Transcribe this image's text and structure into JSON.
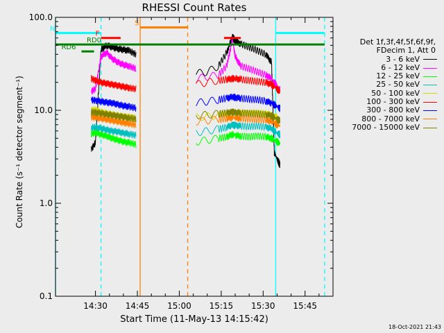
{
  "chart_data": {
    "type": "line",
    "title": "RHESSI Count Rates",
    "xlabel": "Start Time (11-May-13 14:15:42)",
    "ylabel": "Count Rate (s⁻¹ detector segment⁻¹)",
    "yscale": "log",
    "ylim": [
      0.1,
      100
    ],
    "xlim": [
      "14:15:42",
      "15:55:00"
    ],
    "yticks": [
      "0.1",
      "1.0",
      "10.0",
      "100.0"
    ],
    "xticks": [
      "14:30",
      "14:45",
      "15:00",
      "15:15",
      "15:30",
      "15:45"
    ],
    "data_gaps": [
      [
        "14:46:00",
        "15:06:00"
      ]
    ],
    "series": [
      {
        "name": "3 - 6 keV",
        "color": "#000000",
        "x": [
          "14:28:30",
          "14:30",
          "14:32",
          "14:34",
          "14:36",
          "14:38",
          "14:40",
          "14:42",
          "14:44:30",
          "15:06",
          "15:10",
          "15:14",
          "15:17",
          "15:19",
          "15:20",
          "15:22",
          "15:25",
          "15:28",
          "15:31",
          "15:33",
          "15:34",
          "15:35",
          "15:36"
        ],
        "y": [
          3.8,
          4.5,
          45,
          50,
          48,
          46,
          45,
          44,
          40,
          25,
          26,
          30,
          42,
          62,
          56,
          52,
          48,
          44,
          40,
          33,
          3.5,
          3.0,
          2.6
        ]
      },
      {
        "name": "6 - 12 keV",
        "color": "#ff00ff",
        "x": [
          "14:28:30",
          "14:30",
          "14:32",
          "14:34",
          "14:36",
          "14:38",
          "14:40",
          "14:42",
          "14:44:30",
          "15:06",
          "15:10",
          "15:14",
          "15:17",
          "15:19",
          "15:20",
          "15:22",
          "15:25",
          "15:28",
          "15:31",
          "15:33",
          "15:34",
          "15:35",
          "15:36"
        ],
        "y": [
          16,
          17,
          38,
          42,
          36,
          33,
          31,
          30,
          28,
          22,
          23,
          24,
          30,
          58,
          38,
          30,
          28,
          26,
          24,
          22,
          20,
          18,
          17
        ]
      },
      {
        "name": "12 - 25 keV",
        "color": "#00ff00",
        "x": [
          "14:28:30",
          "14:30",
          "14:32",
          "14:34",
          "14:36",
          "14:38",
          "14:40",
          "14:42",
          "14:44:30",
          "15:06",
          "15:10",
          "15:14",
          "15:17",
          "15:19",
          "15:20",
          "15:22",
          "15:25",
          "15:28",
          "15:31",
          "15:33",
          "15:34",
          "15:35",
          "15:36"
        ],
        "y": [
          5.6,
          5.8,
          5.5,
          5.3,
          5.0,
          4.8,
          4.6,
          4.5,
          4.3,
          4.6,
          4.8,
          5.0,
          5.2,
          5.5,
          5.4,
          5.3,
          5.2,
          5.3,
          5.2,
          5.0,
          4.8,
          4.6,
          4.4
        ]
      },
      {
        "name": "25 - 50 keV",
        "color": "#00bfbf",
        "x": [
          "14:28:30",
          "14:30",
          "14:32",
          "14:34",
          "14:36",
          "14:38",
          "14:40",
          "14:42",
          "14:44:30",
          "15:06",
          "15:10",
          "15:14",
          "15:17",
          "15:19",
          "15:20",
          "15:22",
          "15:25",
          "15:28",
          "15:31",
          "15:33",
          "15:34",
          "15:35",
          "15:36"
        ],
        "y": [
          6.5,
          6.6,
          6.4,
          6.2,
          6.0,
          5.9,
          5.7,
          5.6,
          5.4,
          5.8,
          6.0,
          6.3,
          6.6,
          7.0,
          6.9,
          6.8,
          6.7,
          6.8,
          6.6,
          6.4,
          6.0,
          5.7,
          5.5
        ]
      },
      {
        "name": "50 - 100 keV",
        "color": "#d8d800",
        "x": [
          "14:28:30",
          "14:30",
          "14:32",
          "14:34",
          "14:36",
          "14:38",
          "14:40",
          "14:42",
          "14:44:30",
          "15:06",
          "15:10",
          "15:14",
          "15:17",
          "15:19",
          "15:20",
          "15:22",
          "15:25",
          "15:28",
          "15:31",
          "15:33",
          "15:34",
          "15:35",
          "15:36"
        ],
        "y": [
          10,
          10.2,
          9.6,
          9.3,
          9.0,
          8.8,
          8.6,
          8.5,
          8.2,
          8.4,
          8.6,
          8.9,
          9.2,
          9.6,
          9.5,
          9.4,
          9.3,
          9.4,
          9.2,
          9.0,
          8.6,
          8.3,
          8.0
        ]
      },
      {
        "name": "100 - 300 keV",
        "color": "#ff0000",
        "x": [
          "14:28:30",
          "14:30",
          "14:32",
          "14:34",
          "14:36",
          "14:38",
          "14:40",
          "14:42",
          "14:44:30",
          "15:06",
          "15:10",
          "15:14",
          "15:17",
          "15:19",
          "15:20",
          "15:22",
          "15:25",
          "15:28",
          "15:31",
          "15:33",
          "15:34",
          "15:35",
          "15:36"
        ],
        "y": [
          22,
          21,
          20,
          19.5,
          19,
          18.5,
          18,
          17.5,
          17,
          19,
          20,
          21,
          21.5,
          22,
          22,
          21.5,
          21,
          20.5,
          20,
          19,
          18,
          17,
          16
        ]
      },
      {
        "name": "300 - 800 keV",
        "color": "#0000ff",
        "x": [
          "14:28:30",
          "14:30",
          "14:32",
          "14:34",
          "14:36",
          "14:38",
          "14:40",
          "14:42",
          "14:44:30",
          "15:06",
          "15:10",
          "15:14",
          "15:17",
          "15:19",
          "15:20",
          "15:22",
          "15:25",
          "15:28",
          "15:31",
          "15:33",
          "15:34",
          "15:35",
          "15:36"
        ],
        "y": [
          13,
          12.8,
          12.5,
          12.2,
          12,
          11.6,
          11.2,
          11,
          10.6,
          12,
          12.5,
          13,
          13.5,
          14,
          13.8,
          13.5,
          13.2,
          13,
          12.6,
          12,
          11.5,
          11,
          10.5
        ]
      },
      {
        "name": "800 - 7000 keV",
        "color": "#ff8000",
        "x": [
          "14:28:30",
          "14:30",
          "14:32",
          "14:34",
          "14:36",
          "14:38",
          "14:40",
          "14:42",
          "14:44:30",
          "15:06",
          "15:10",
          "15:14",
          "15:17",
          "15:19",
          "15:20",
          "15:22",
          "15:25",
          "15:28",
          "15:31",
          "15:33",
          "15:34",
          "15:35",
          "15:36"
        ],
        "y": [
          8.5,
          8.4,
          8.2,
          8.0,
          7.8,
          7.6,
          7.4,
          7.2,
          7.0,
          7.6,
          7.8,
          8.0,
          8.2,
          8.4,
          8.3,
          8.2,
          8.1,
          8.0,
          7.9,
          7.6,
          7.3,
          7.0,
          6.8
        ]
      },
      {
        "name": "7000 - 15000 keV",
        "color": "#808000",
        "x": [
          "14:28:30",
          "14:30",
          "14:32",
          "14:34",
          "14:36",
          "14:38",
          "14:40",
          "14:42",
          "14:44:30",
          "15:06",
          "15:10",
          "15:14",
          "15:17",
          "15:19",
          "15:20",
          "15:22",
          "15:25",
          "15:28",
          "15:31",
          "15:33",
          "15:34",
          "15:35",
          "15:36"
        ],
        "y": [
          9.6,
          9.5,
          9.3,
          9.1,
          8.9,
          8.7,
          8.5,
          8.3,
          8.1,
          8.8,
          9.0,
          9.2,
          9.4,
          9.6,
          9.5,
          9.4,
          9.3,
          9.2,
          9.0,
          8.8,
          8.4,
          8.0,
          7.8
        ]
      }
    ],
    "flags": [
      {
        "label": "N",
        "color": "#00ffff",
        "kind": "saa_night",
        "spans": [
          [
            "14:15:42",
            "14:32:00"
          ],
          [
            "15:34:30",
            "15:52:00"
          ]
        ],
        "level": 68
      },
      {
        "label": "S",
        "color": "#ff8000",
        "kind": "saa",
        "spans": [
          [
            "14:46:00",
            "15:03:00"
          ]
        ],
        "level": 78
      },
      {
        "label": "F",
        "color": "#ff0000",
        "kind": "flare",
        "spans": [
          [
            "14:32:00",
            "14:39:00"
          ],
          [
            "15:16:00",
            "15:22:00"
          ]
        ],
        "level": 60
      },
      {
        "label": "RD0",
        "color": "#008000",
        "kind": "rate_decim",
        "spans": [
          [
            "14:15:42",
            "15:52:00"
          ]
        ],
        "level": 51
      },
      {
        "label": "RD6",
        "color": "#008000",
        "kind": "rate_decim",
        "spans": [
          [
            "14:25:00",
            "14:29:30"
          ]
        ],
        "level": 43
      }
    ],
    "vlines": [
      {
        "x": "14:15:42",
        "color": "#00ffff",
        "style": "solid"
      },
      {
        "x": "14:32:00",
        "color": "#00ffff",
        "style": "dashed"
      },
      {
        "x": "14:46:00",
        "color": "#ff8000",
        "style": "solid"
      },
      {
        "x": "15:03:00",
        "color": "#ff8000",
        "style": "dashed"
      },
      {
        "x": "15:34:30",
        "color": "#00ffff",
        "style": "solid"
      },
      {
        "x": "15:52:00",
        "color": "#00ffff",
        "style": "dashed"
      }
    ]
  },
  "legend": {
    "header_line1": "Det 1f,3f,4f,5f,6f,9f,",
    "header_line2": "FDecim 1, Att 0"
  },
  "footer": {
    "timestamp": "18-Oct-2021 21:43"
  }
}
